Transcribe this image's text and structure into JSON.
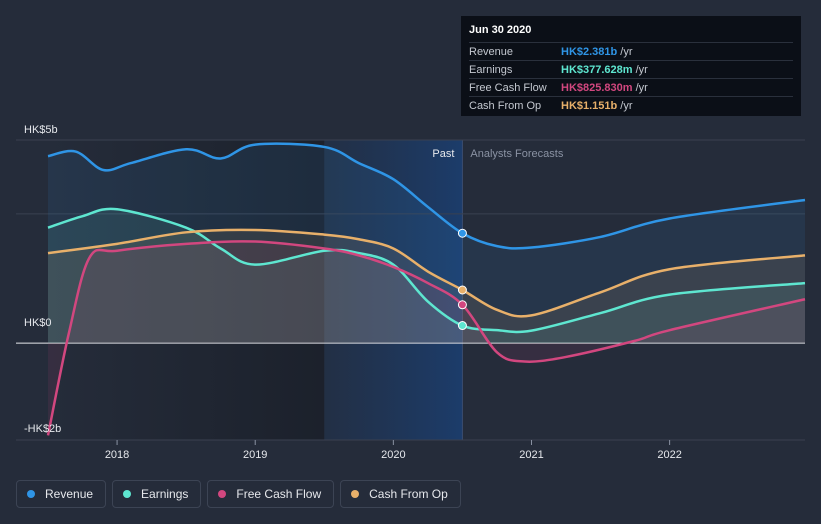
{
  "chart_data": {
    "type": "line",
    "title": "",
    "y_unit": "HK$b",
    "ylim": [
      -2.1,
      4.4
    ],
    "xlim": [
      2017.5,
      2022.98
    ],
    "y_ticks": [
      {
        "value": 5,
        "label": "HK$5b"
      },
      {
        "value": 0,
        "label": "HK$0"
      },
      {
        "value": -2,
        "label": "-HK$2b"
      }
    ],
    "x_ticks": [
      {
        "value": 2018,
        "label": "2018"
      },
      {
        "value": 2019,
        "label": "2019"
      },
      {
        "value": 2020,
        "label": "2020"
      },
      {
        "value": 2021,
        "label": "2021"
      },
      {
        "value": 2022,
        "label": "2022"
      }
    ],
    "past_start": 2019.5,
    "present": 2020.5,
    "zones": {
      "past": "Past",
      "forecast": "Analysts Forecasts"
    },
    "series": [
      {
        "name": "Revenue",
        "color": "#2f95e6",
        "points": [
          [
            2017.5,
            4.05
          ],
          [
            2017.7,
            4.15
          ],
          [
            2017.9,
            3.75
          ],
          [
            2018.1,
            3.9
          ],
          [
            2018.5,
            4.2
          ],
          [
            2018.75,
            4.0
          ],
          [
            2019.0,
            4.3
          ],
          [
            2019.5,
            4.25
          ],
          [
            2019.75,
            3.9
          ],
          [
            2020.0,
            3.55
          ],
          [
            2020.25,
            2.95
          ],
          [
            2020.5,
            2.38
          ],
          [
            2020.75,
            2.1
          ],
          [
            2021.0,
            2.07
          ],
          [
            2021.5,
            2.3
          ],
          [
            2022.0,
            2.7
          ],
          [
            2022.98,
            3.1
          ]
        ]
      },
      {
        "name": "Earnings",
        "color": "#5ee6d0",
        "points": [
          [
            2017.5,
            2.5
          ],
          [
            2017.75,
            2.75
          ],
          [
            2018.0,
            2.9
          ],
          [
            2018.5,
            2.5
          ],
          [
            2018.75,
            2.05
          ],
          [
            2019.0,
            1.7
          ],
          [
            2019.5,
            2.0
          ],
          [
            2019.75,
            1.95
          ],
          [
            2020.0,
            1.7
          ],
          [
            2020.25,
            0.9
          ],
          [
            2020.5,
            0.38
          ],
          [
            2020.75,
            0.28
          ],
          [
            2021.0,
            0.27
          ],
          [
            2021.5,
            0.65
          ],
          [
            2022.0,
            1.05
          ],
          [
            2022.98,
            1.3
          ]
        ]
      },
      {
        "name": "Free Cash Flow",
        "color": "#d2477f",
        "points": [
          [
            2017.5,
            -2.0
          ],
          [
            2017.65,
            0.2
          ],
          [
            2017.8,
            1.85
          ],
          [
            2018.0,
            2.0
          ],
          [
            2018.5,
            2.15
          ],
          [
            2019.0,
            2.2
          ],
          [
            2019.5,
            2.05
          ],
          [
            2019.75,
            1.9
          ],
          [
            2020.0,
            1.65
          ],
          [
            2020.25,
            1.3
          ],
          [
            2020.5,
            0.83
          ],
          [
            2020.75,
            -0.2
          ],
          [
            2020.95,
            -0.4
          ],
          [
            2021.25,
            -0.3
          ],
          [
            2021.75,
            0.05
          ],
          [
            2022.0,
            0.28
          ],
          [
            2022.98,
            0.95
          ]
        ]
      },
      {
        "name": "Cash From Op",
        "color": "#e8b06a",
        "points": [
          [
            2017.5,
            1.95
          ],
          [
            2018.0,
            2.15
          ],
          [
            2018.5,
            2.4
          ],
          [
            2019.0,
            2.45
          ],
          [
            2019.5,
            2.35
          ],
          [
            2019.75,
            2.25
          ],
          [
            2020.0,
            2.05
          ],
          [
            2020.25,
            1.55
          ],
          [
            2020.5,
            1.15
          ],
          [
            2020.75,
            0.72
          ],
          [
            2021.0,
            0.6
          ],
          [
            2021.5,
            1.1
          ],
          [
            2022.0,
            1.6
          ],
          [
            2022.98,
            1.9
          ]
        ]
      }
    ]
  },
  "tooltip": {
    "date": "Jun 30 2020",
    "rows": [
      {
        "label": "Revenue",
        "value": "HK$2.381b",
        "unit": "/yr",
        "color": "#2f95e6"
      },
      {
        "label": "Earnings",
        "value": "HK$377.628m",
        "unit": "/yr",
        "color": "#5ee6d0"
      },
      {
        "label": "Free Cash Flow",
        "value": "HK$825.830m",
        "unit": "/yr",
        "color": "#d2477f"
      },
      {
        "label": "Cash From Op",
        "value": "HK$1.151b",
        "unit": "/yr",
        "color": "#e8b06a"
      }
    ]
  },
  "legend": [
    {
      "label": "Revenue",
      "color": "#2f95e6"
    },
    {
      "label": "Earnings",
      "color": "#5ee6d0"
    },
    {
      "label": "Free Cash Flow",
      "color": "#d2477f"
    },
    {
      "label": "Cash From Op",
      "color": "#e8b06a"
    }
  ]
}
